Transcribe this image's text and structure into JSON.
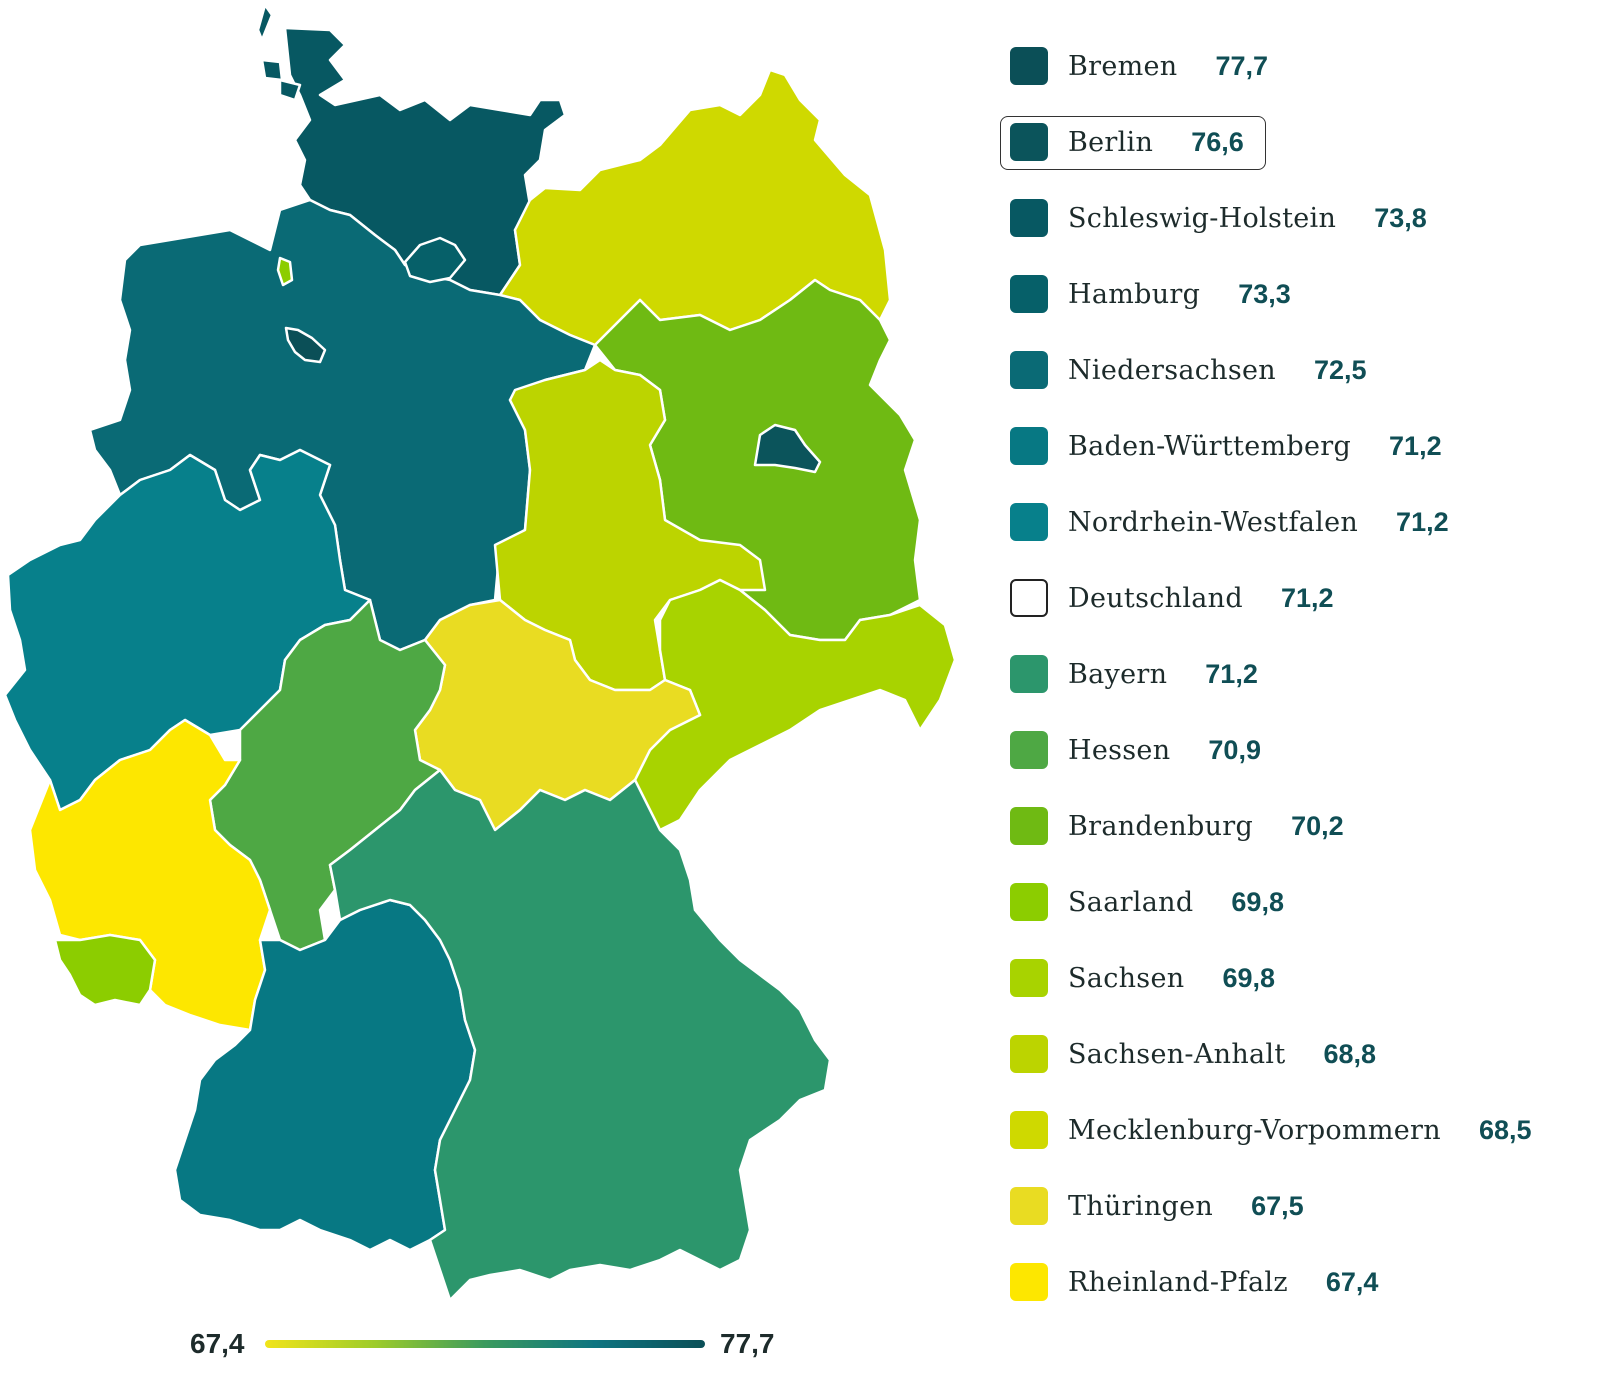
{
  "states": [
    {
      "id": "schleswig-holstein",
      "name": "Schleswig-Holstein",
      "value": "73,8",
      "color": "#075862"
    },
    {
      "id": "niedersachsen",
      "name": "Niedersachsen",
      "value": "72,5",
      "color": "#0a6a75"
    },
    {
      "id": "hamburg",
      "name": "Hamburg",
      "value": "73,3",
      "color": "#066069"
    },
    {
      "id": "bremen",
      "name": "Bremen",
      "value": "77,7",
      "color": "#0b4f57"
    },
    {
      "id": "mecklenburg-vorpommern",
      "name": "Mecklenburg-Vorpommern",
      "value": "68,5",
      "color": "#cfd900"
    },
    {
      "id": "brandenburg",
      "name": "Brandenburg",
      "value": "70,2",
      "color": "#6fba13"
    },
    {
      "id": "berlin",
      "name": "Berlin",
      "value": "76,6",
      "color": "#0b545b"
    },
    {
      "id": "sachsen-anhalt",
      "name": "Sachsen-Anhalt",
      "value": "68,8",
      "color": "#bcd400"
    },
    {
      "id": "sachsen",
      "name": "Sachsen",
      "value": "69,8",
      "color": "#a8d300"
    },
    {
      "id": "thueringen",
      "name": "Thüringen",
      "value": "67,5",
      "color": "#e9dc22"
    },
    {
      "id": "nordrhein-westfalen",
      "name": "Nordrhein-Westfalen",
      "value": "71,2",
      "color": "#07808b"
    },
    {
      "id": "hessen",
      "name": "Hessen",
      "value": "70,9",
      "color": "#4ea844"
    },
    {
      "id": "rheinland-pfalz",
      "name": "Rheinland-Pfalz",
      "value": "67,4",
      "color": "#fde700"
    },
    {
      "id": "saarland",
      "name": "Saarland",
      "value": "69,8",
      "color": "#8ccd00"
    },
    {
      "id": "baden-wuerttemberg",
      "name": "Baden-Württemberg",
      "value": "71,2",
      "color": "#077883"
    },
    {
      "id": "bayern",
      "name": "Bayern",
      "value": "71,2",
      "color": "#2c966c"
    }
  ],
  "legend": [
    {
      "name": "Bremen",
      "value": "77,7",
      "color": "#0b4f57"
    },
    {
      "name": "Berlin",
      "value": "76,6",
      "color": "#0b545b",
      "highlight": true
    },
    {
      "name": "Schleswig-Holstein",
      "value": "73,8",
      "color": "#075862"
    },
    {
      "name": "Hamburg",
      "value": "73,3",
      "color": "#066069"
    },
    {
      "name": "Niedersachsen",
      "value": "72,5",
      "color": "#0a6a75"
    },
    {
      "name": "Baden-Württemberg",
      "value": "71,2",
      "color": "#077883"
    },
    {
      "name": "Nordrhein-Westfalen",
      "value": "71,2",
      "color": "#07808b"
    },
    {
      "name": "Deutschland",
      "value": "71,2",
      "color": "#ffffff",
      "outline": true
    },
    {
      "name": "Bayern",
      "value": "71,2",
      "color": "#2c966c"
    },
    {
      "name": "Hessen",
      "value": "70,9",
      "color": "#4ea844"
    },
    {
      "name": "Brandenburg",
      "value": "70,2",
      "color": "#6fba13"
    },
    {
      "name": "Saarland",
      "value": "69,8",
      "color": "#8ccd00"
    },
    {
      "name": "Sachsen",
      "value": "69,8",
      "color": "#a8d300"
    },
    {
      "name": "Sachsen-Anhalt",
      "value": "68,8",
      "color": "#bcd400"
    },
    {
      "name": "Mecklenburg-Vorpommern",
      "value": "68,5",
      "color": "#cfd900"
    },
    {
      "name": "Thüringen",
      "value": "67,5",
      "color": "#e9dc22"
    },
    {
      "name": "Rheinland-Pfalz",
      "value": "67,4",
      "color": "#fde700"
    }
  ],
  "scale": {
    "min": "67,4",
    "max": "77,7"
  }
}
